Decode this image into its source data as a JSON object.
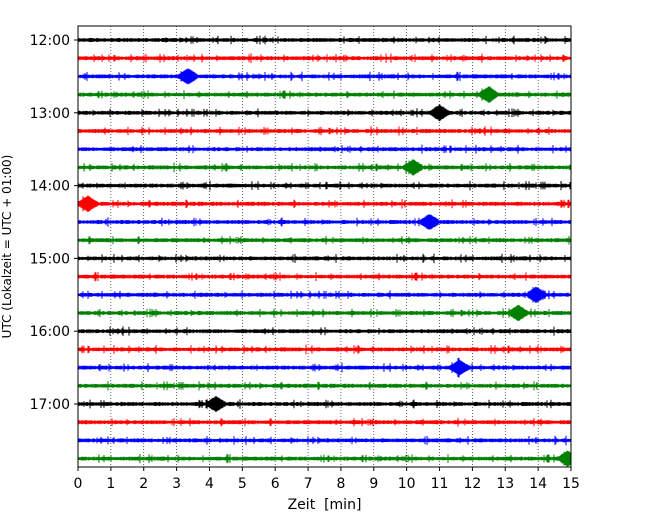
{
  "chart_data": {
    "type": "line",
    "subtype": "helicorder-seismogram",
    "xlabel": "Zeit  [min]",
    "ylabel": "UTC (Lokalzeit = UTC + 01:00)",
    "xlim": [
      0,
      15
    ],
    "x_ticks": [
      "0",
      "1",
      "2",
      "3",
      "4",
      "5",
      "6",
      "7",
      "8",
      "9",
      "10",
      "11",
      "12",
      "13",
      "14",
      "15"
    ],
    "y_tick_labels": [
      "12:00",
      "13:00",
      "14:00",
      "15:00",
      "16:00",
      "17:00"
    ],
    "grid": "vertical dotted lines at each minute",
    "color_cycle": [
      "#000000",
      "#ff0000",
      "#0000ff",
      "#008000"
    ],
    "rows": [
      {
        "start": "12:00",
        "color": "#000000"
      },
      {
        "start": "12:15",
        "color": "#ff0000"
      },
      {
        "start": "12:30",
        "color": "#0000ff"
      },
      {
        "start": "12:45",
        "color": "#008000"
      },
      {
        "start": "13:00",
        "color": "#000000"
      },
      {
        "start": "13:15",
        "color": "#ff0000"
      },
      {
        "start": "13:30",
        "color": "#0000ff"
      },
      {
        "start": "13:45",
        "color": "#008000"
      },
      {
        "start": "14:00",
        "color": "#000000"
      },
      {
        "start": "14:15",
        "color": "#ff0000"
      },
      {
        "start": "14:30",
        "color": "#0000ff"
      },
      {
        "start": "14:45",
        "color": "#008000"
      },
      {
        "start": "15:00",
        "color": "#000000"
      },
      {
        "start": "15:15",
        "color": "#ff0000"
      },
      {
        "start": "15:30",
        "color": "#0000ff"
      },
      {
        "start": "15:45",
        "color": "#008000"
      },
      {
        "start": "16:00",
        "color": "#000000"
      },
      {
        "start": "16:15",
        "color": "#ff0000"
      },
      {
        "start": "16:30",
        "color": "#0000ff"
      },
      {
        "start": "16:45",
        "color": "#008000"
      },
      {
        "start": "17:00",
        "color": "#000000"
      },
      {
        "start": "17:15",
        "color": "#ff0000"
      },
      {
        "start": "17:30",
        "color": "#0000ff"
      },
      {
        "start": "17:45",
        "color": "#008000"
      }
    ],
    "notable_events": [
      {
        "row": "12:30",
        "minute": 3.35
      },
      {
        "row": "12:45",
        "minute": 12.5
      },
      {
        "row": "13:00",
        "minute": 11.0
      },
      {
        "row": "13:45",
        "minute": 10.2
      },
      {
        "row": "14:15",
        "minute": 0.3
      },
      {
        "row": "14:30",
        "minute": 10.7
      },
      {
        "row": "15:30",
        "minute": 13.95
      },
      {
        "row": "15:45",
        "minute": 13.4
      },
      {
        "row": "16:30",
        "minute": 11.6
      },
      {
        "row": "17:00",
        "minute": 4.2
      },
      {
        "row": "17:45",
        "minute": 14.9
      }
    ]
  }
}
